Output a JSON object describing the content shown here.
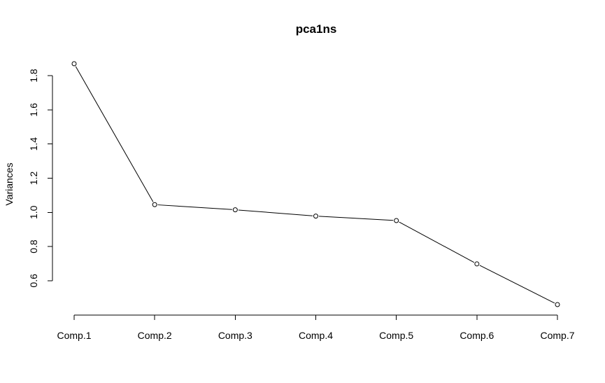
{
  "chart_data": {
    "type": "line",
    "title": "pca1ns",
    "xlabel": "",
    "ylabel": "Variances",
    "categories": [
      "Comp.1",
      "Comp.2",
      "Comp.3",
      "Comp.4",
      "Comp.5",
      "Comp.6",
      "Comp.7"
    ],
    "values": [
      1.87,
      1.045,
      1.015,
      0.978,
      0.952,
      0.698,
      0.46
    ],
    "yticks": [
      "0.6",
      "0.8",
      "1.0",
      "1.2",
      "1.4",
      "1.6",
      "1.8"
    ],
    "ylim": [
      0.46,
      1.87
    ],
    "grid": false,
    "legend": "none",
    "colors": {
      "line": "#000000",
      "point_fill": "#ffffff",
      "background": "#ffffff"
    }
  }
}
